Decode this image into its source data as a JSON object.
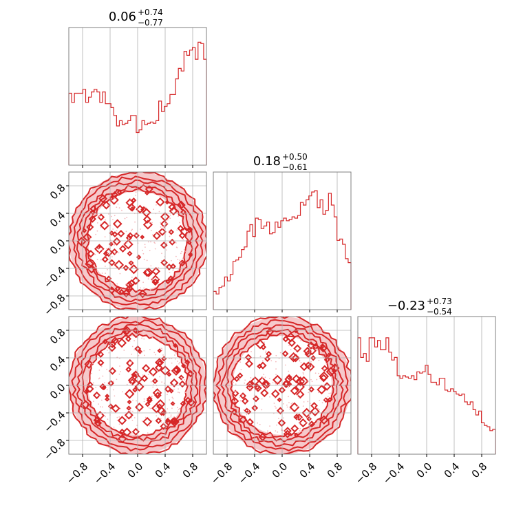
{
  "chart_data": {
    "type": "corner",
    "ticks": [
      -0.8,
      -0.4,
      0.0,
      0.4,
      0.8
    ],
    "tick_labels": [
      "−0.8",
      "−0.4",
      "0.0",
      "0.4",
      "0.8"
    ],
    "range": [
      -1.0,
      1.0
    ],
    "color": "#d62728",
    "grid": true,
    "titles": [
      {
        "median": "0.06",
        "plus": "+0.74",
        "minus": "−0.77"
      },
      {
        "median": "0.18",
        "plus": "+0.50",
        "minus": "−0.61"
      },
      {
        "median": "−0.23",
        "plus": "+0.73",
        "minus": "−0.54"
      }
    ],
    "histograms": [
      {
        "bin_edges": [
          -1.0,
          0.96
        ],
        "bin_count": 49,
        "counts": [
          0.55,
          0.48,
          0.55,
          0.55,
          0.55,
          0.58,
          0.48,
          0.52,
          0.56,
          0.58,
          0.56,
          0.48,
          0.56,
          0.47,
          0.47,
          0.44,
          0.38,
          0.3,
          0.34,
          0.31,
          0.32,
          0.34,
          0.38,
          0.38,
          0.25,
          0.27,
          0.34,
          0.31,
          0.32,
          0.33,
          0.32,
          0.34,
          0.49,
          0.41,
          0.45,
          0.47,
          0.54,
          0.54,
          0.66,
          0.74,
          0.72,
          0.87,
          0.84,
          0.88,
          0.9,
          0.81,
          0.94,
          0.93,
          0.81
        ],
        "ymax": 1.0
      },
      {
        "bin_edges": [
          -1.0,
          0.96
        ],
        "bin_count": 49,
        "counts": [
          0.14,
          0.12,
          0.17,
          0.18,
          0.25,
          0.22,
          0.27,
          0.37,
          0.38,
          0.4,
          0.46,
          0.48,
          0.6,
          0.65,
          0.56,
          0.7,
          0.69,
          0.62,
          0.64,
          0.67,
          0.58,
          0.59,
          0.67,
          0.63,
          0.68,
          0.7,
          0.68,
          0.69,
          0.71,
          0.7,
          0.72,
          0.82,
          0.8,
          0.84,
          0.87,
          0.9,
          0.91,
          0.78,
          0.84,
          0.73,
          0.76,
          0.89,
          0.8,
          0.71,
          0.53,
          0.54,
          0.5,
          0.39,
          0.36
        ],
        "ymax": 1.0
      },
      {
        "bin_edges": [
          -1.0,
          0.96
        ],
        "bin_count": 49,
        "counts": [
          0.89,
          0.74,
          0.77,
          0.71,
          0.89,
          0.89,
          0.82,
          0.87,
          0.8,
          0.8,
          0.89,
          0.78,
          0.72,
          0.74,
          0.6,
          0.58,
          0.6,
          0.59,
          0.58,
          0.6,
          0.57,
          0.63,
          0.62,
          0.63,
          0.68,
          0.61,
          0.55,
          0.55,
          0.53,
          0.58,
          0.58,
          0.49,
          0.48,
          0.5,
          0.48,
          0.46,
          0.45,
          0.46,
          0.4,
          0.38,
          0.4,
          0.34,
          0.3,
          0.33,
          0.24,
          0.22,
          0.21,
          0.18,
          0.19
        ],
        "ymax": 1.0
      }
    ],
    "pairs": [
      {
        "row": 1,
        "col": 0,
        "density": "uniform disk, radius 1"
      },
      {
        "row": 2,
        "col": 0,
        "density": "uniform disk, radius 1"
      },
      {
        "row": 2,
        "col": 1,
        "density": "uniform disk, radius 1"
      }
    ]
  }
}
